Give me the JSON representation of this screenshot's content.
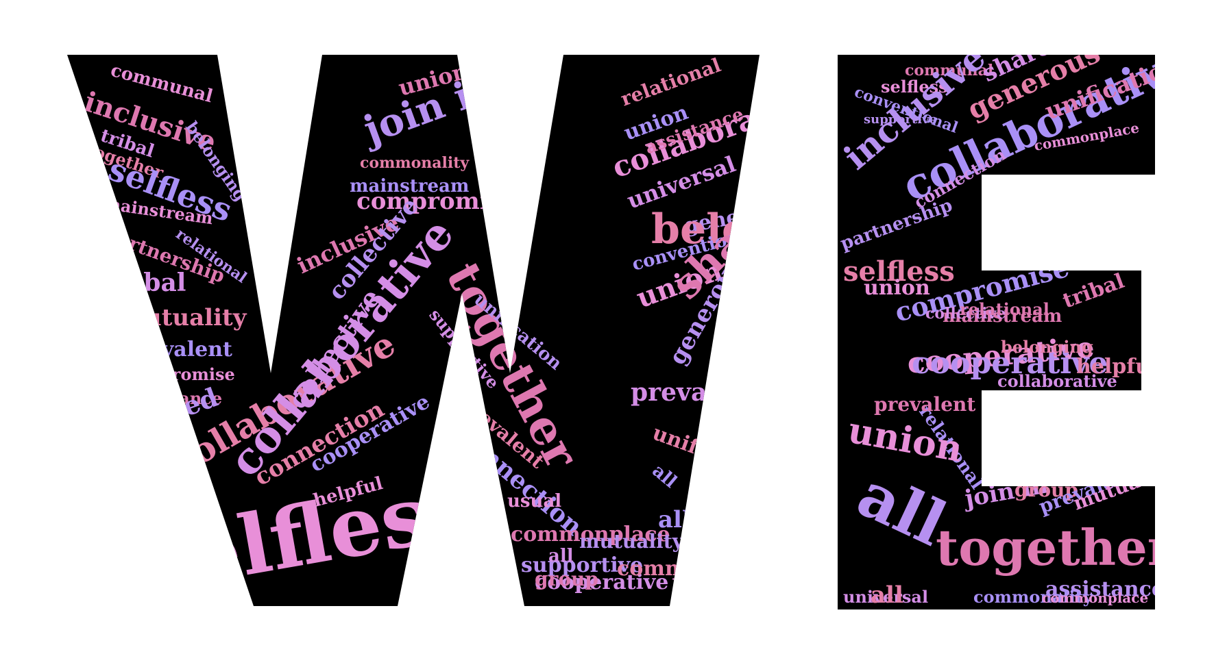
{
  "palette": {
    "background": "#ffffff",
    "letter_fill": "#000000",
    "word_colors": [
      "#e88fd8",
      "#de78b0",
      "#b690f0",
      "#d48ee6",
      "#e57fa8",
      "#a990f6"
    ]
  },
  "letters": {
    "W": {
      "words": [
        "communal",
        "inclusive",
        "belonging",
        "tribal",
        "together",
        "selfless",
        "mainstream",
        "partnership",
        "relational",
        "tribal",
        "mutuality",
        "prevalent",
        "compromise",
        "assistance",
        "shared",
        "group",
        "collaborative",
        "all",
        "selfless",
        "union",
        "join in",
        "collective",
        "commonality",
        "mainstream",
        "compromise",
        "inclusive",
        "collective",
        "collaborative",
        "connection",
        "cooperative",
        "helpful",
        "together",
        "unification",
        "supportive",
        "prevalent",
        "connection",
        "usual",
        "commonplace",
        "supportive",
        "cooperative",
        "relational",
        "union",
        "collaborative",
        "assistance",
        "generous",
        "universal",
        "belonging",
        "conventional",
        "union",
        "shared",
        "generous",
        "prevalent",
        "unification",
        "all",
        "helpful",
        "group",
        "mutuality",
        "all",
        "commonality",
        "all"
      ]
    },
    "E": {
      "words": [
        "selfless",
        "communal",
        "inclusive",
        "shared",
        "generous",
        "collaborative",
        "cooperative",
        "unification",
        "partnership",
        "connection",
        "selfless",
        "compromise",
        "union",
        "mainstream",
        "cooperative",
        "collaborative",
        "helpful",
        "relational",
        "union",
        "prevalent",
        "all",
        "join in",
        "group",
        "prevalent",
        "mutuality",
        "together",
        "assistance",
        "universal",
        "all",
        "commonality",
        "commonplace",
        "tribal",
        "supportive",
        "collective",
        "belonging",
        "conventional",
        "commonplace",
        "relational"
      ]
    }
  }
}
